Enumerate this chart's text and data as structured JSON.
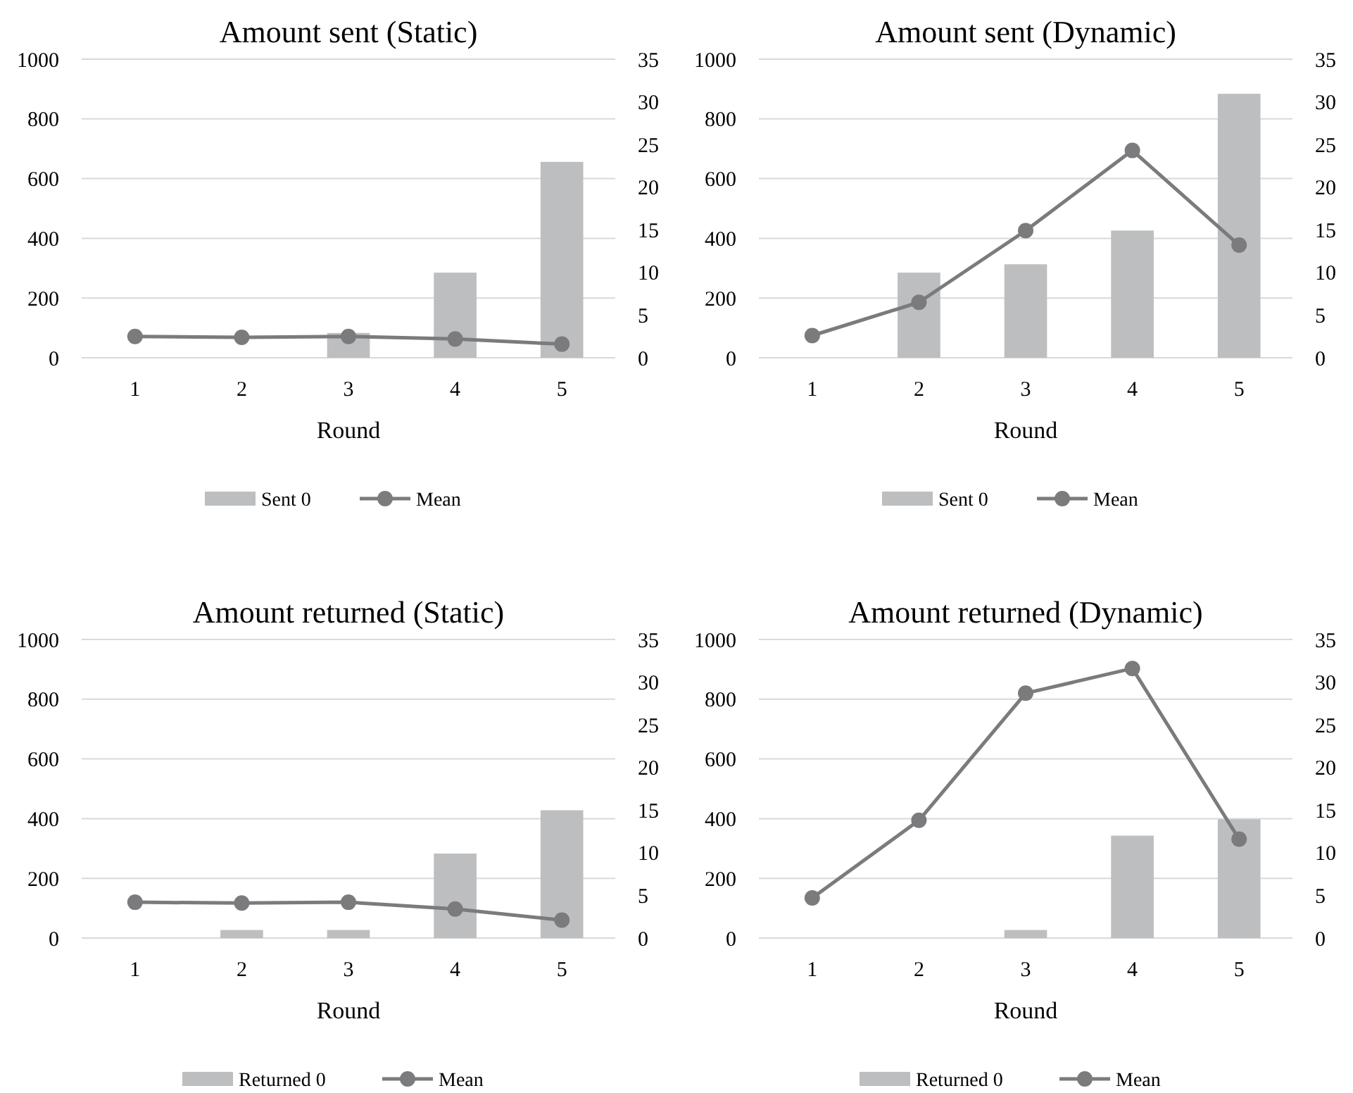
{
  "chart_data": [
    {
      "type": "bar",
      "title": "Amount sent (Static)",
      "xlabel": "Round",
      "categories": [
        "1",
        "2",
        "3",
        "4",
        "5"
      ],
      "ylim": [
        0,
        1000
      ],
      "yticks": [
        0,
        200,
        400,
        600,
        800,
        1000
      ],
      "y2lim": [
        0,
        35
      ],
      "y2ticks": [
        0,
        5,
        10,
        15,
        20,
        25,
        30,
        35
      ],
      "grid": "y",
      "legend": "bottom",
      "marker": "circle",
      "series": [
        {
          "name": "Sent 0",
          "color": "#bdbec0",
          "values": [
            0,
            0,
            83,
            285,
            656
          ]
        },
        {
          "name": "Mean",
          "type": "line",
          "axis": "y2",
          "color": "#7b7b7d",
          "values": [
            2.5,
            2.4,
            2.5,
            2.2,
            1.6
          ]
        }
      ]
    },
    {
      "type": "bar",
      "title": "Amount sent (Dynamic)",
      "xlabel": "Round",
      "categories": [
        "1",
        "2",
        "3",
        "4",
        "5"
      ],
      "ylim": [
        0,
        1000
      ],
      "yticks": [
        0,
        200,
        400,
        600,
        800,
        1000
      ],
      "y2lim": [
        0,
        35
      ],
      "y2ticks": [
        0,
        5,
        10,
        15,
        20,
        25,
        30,
        35
      ],
      "grid": "y",
      "legend": "bottom",
      "marker": "circle",
      "series": [
        {
          "name": "Sent 0",
          "color": "#bdbec0",
          "values": [
            0,
            285,
            313,
            426,
            884
          ]
        },
        {
          "name": "Mean",
          "type": "line",
          "axis": "y2",
          "color": "#7b7b7d",
          "values": [
            2.6,
            6.5,
            14.9,
            24.3,
            13.2
          ]
        }
      ]
    },
    {
      "type": "bar",
      "title": "Amount returned (Static)",
      "xlabel": "Round",
      "categories": [
        "1",
        "2",
        "3",
        "4",
        "5"
      ],
      "ylim": [
        0,
        1000
      ],
      "yticks": [
        0,
        200,
        400,
        600,
        800,
        1000
      ],
      "y2lim": [
        0,
        35
      ],
      "y2ticks": [
        0,
        5,
        10,
        15,
        20,
        25,
        30,
        35
      ],
      "grid": "y",
      "legend": "bottom",
      "marker": "circle",
      "series": [
        {
          "name": "Returned 0",
          "color": "#bdbec0",
          "values": [
            0,
            27,
            27,
            283,
            428
          ]
        },
        {
          "name": "Mean",
          "type": "line",
          "axis": "y2",
          "color": "#7b7b7d",
          "values": [
            4.2,
            4.1,
            4.2,
            3.4,
            2.1
          ]
        }
      ]
    },
    {
      "type": "bar",
      "title": "Amount returned (Dynamic)",
      "xlabel": "Round",
      "categories": [
        "1",
        "2",
        "3",
        "4",
        "5"
      ],
      "ylim": [
        0,
        1000
      ],
      "yticks": [
        0,
        200,
        400,
        600,
        800,
        1000
      ],
      "y2lim": [
        0,
        35
      ],
      "y2ticks": [
        0,
        5,
        10,
        15,
        20,
        25,
        30,
        35
      ],
      "grid": "y",
      "legend": "bottom",
      "marker": "circle",
      "series": [
        {
          "name": "Returned 0",
          "color": "#bdbec0",
          "values": [
            0,
            0,
            27,
            343,
            398
          ]
        },
        {
          "name": "Mean",
          "type": "line",
          "axis": "y2",
          "color": "#7b7b7d",
          "values": [
            4.7,
            13.8,
            28.7,
            31.6,
            11.6
          ]
        }
      ]
    }
  ]
}
